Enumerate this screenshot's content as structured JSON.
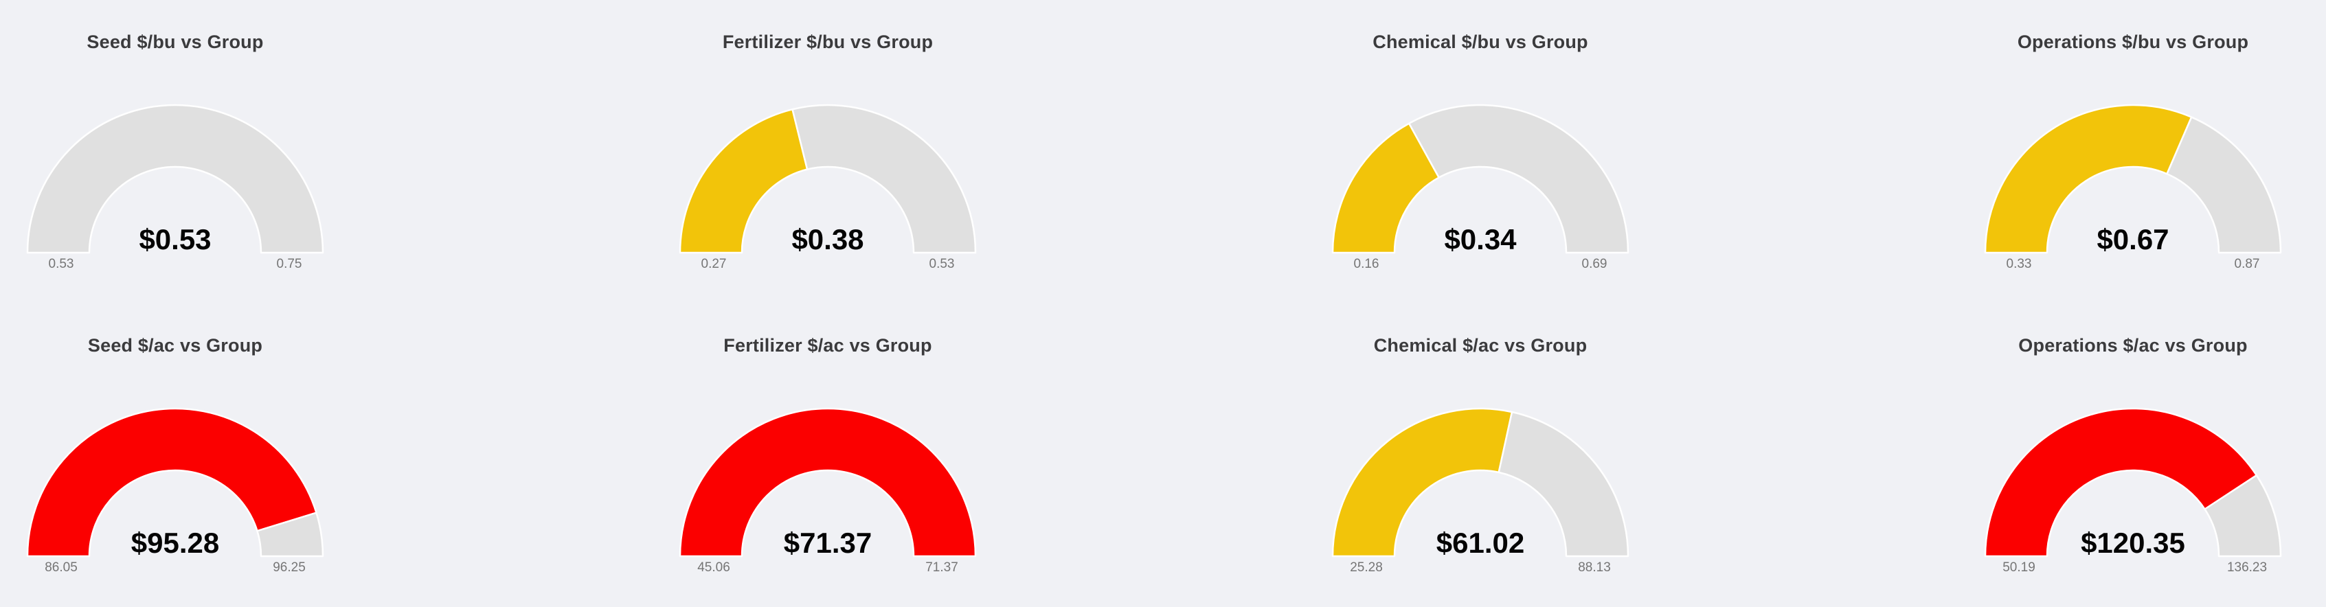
{
  "page": {
    "background": "#f0f1f5"
  },
  "colors": {
    "track_gray": "#e0e0e0",
    "warning_yellow": "#f2c40a",
    "alert_red": "#fb0000",
    "title_text": "#3b3b3d",
    "range_label_text": "#757575",
    "value_text": "#040404",
    "arc_outline": "#ffffff"
  },
  "chart_data": [
    {
      "type": "gauge",
      "title": "Seed $/bu vs Group",
      "value": 0.53,
      "value_display": "$0.53",
      "min": 0.53,
      "max": 0.75,
      "min_label": "0.53",
      "max_label": "0.75",
      "fill_hex": "#e0e0e0",
      "fill_name": "gray"
    },
    {
      "type": "gauge",
      "title": "Fertilizer $/bu vs Group",
      "value": 0.38,
      "value_display": "$0.38",
      "min": 0.27,
      "max": 0.53,
      "min_label": "0.27",
      "max_label": "0.53",
      "fill_hex": "#f2c40a",
      "fill_name": "yellow"
    },
    {
      "type": "gauge",
      "title": "Chemical $/bu vs Group",
      "value": 0.34,
      "value_display": "$0.34",
      "min": 0.16,
      "max": 0.69,
      "min_label": "0.16",
      "max_label": "0.69",
      "fill_hex": "#f2c40a",
      "fill_name": "yellow"
    },
    {
      "type": "gauge",
      "title": "Operations $/bu vs Group",
      "value": 0.67,
      "value_display": "$0.67",
      "min": 0.33,
      "max": 0.87,
      "min_label": "0.33",
      "max_label": "0.87",
      "fill_hex": "#f2c40a",
      "fill_name": "yellow"
    },
    {
      "type": "gauge",
      "title": "Seed $/ac vs Group",
      "value": 95.28,
      "value_display": "$95.28",
      "min": 86.05,
      "max": 96.25,
      "min_label": "86.05",
      "max_label": "96.25",
      "fill_hex": "#fb0000",
      "fill_name": "red"
    },
    {
      "type": "gauge",
      "title": "Fertilizer $/ac vs Group",
      "value": 71.37,
      "value_display": "$71.37",
      "min": 45.06,
      "max": 71.37,
      "min_label": "45.06",
      "max_label": "71.37",
      "fill_hex": "#fb0000",
      "fill_name": "red"
    },
    {
      "type": "gauge",
      "title": "Chemical $/ac vs Group",
      "value": 61.02,
      "value_display": "$61.02",
      "min": 25.28,
      "max": 88.13,
      "min_label": "25.28",
      "max_label": "88.13",
      "fill_hex": "#f2c40a",
      "fill_name": "yellow"
    },
    {
      "type": "gauge",
      "title": "Operations $/ac vs Group",
      "value": 120.35,
      "value_display": "$120.35",
      "min": 50.19,
      "max": 136.23,
      "min_label": "50.19",
      "max_label": "136.23",
      "fill_hex": "#fb0000",
      "fill_name": "red"
    }
  ]
}
